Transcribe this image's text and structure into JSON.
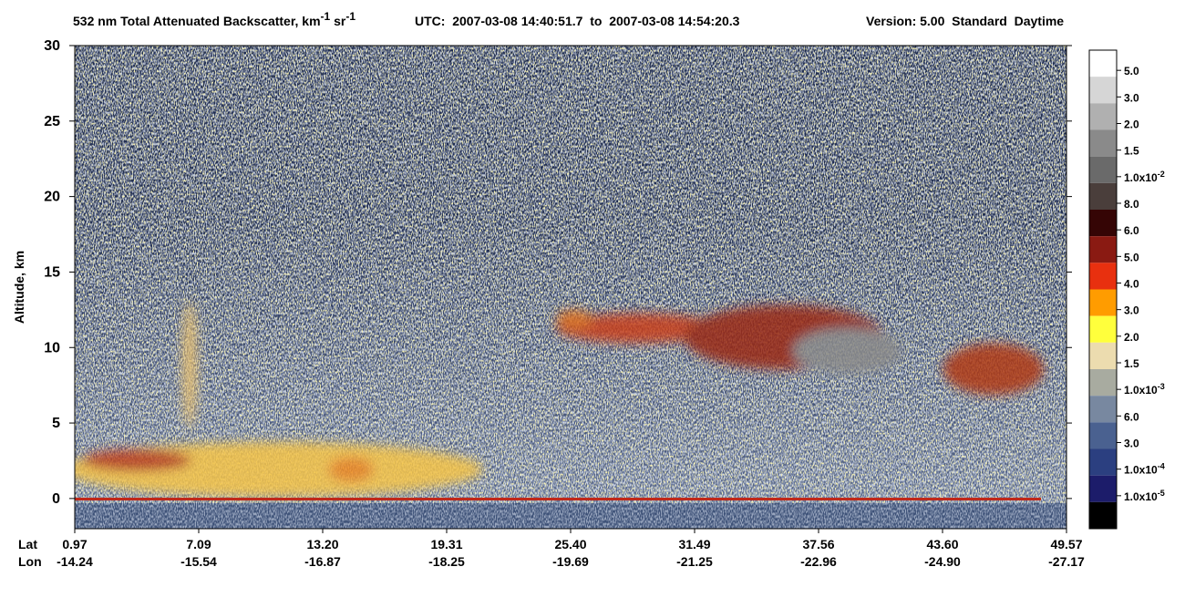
{
  "chart_data": {
    "type": "curtain",
    "title": {
      "main": "532 nm Total Attenuated Backscatter, km",
      "sup1": "-1",
      "mid": " sr",
      "sup2": "-1"
    },
    "utc": "UTC:  2007-03-08 14:40:51.7  to  2007-03-08 14:54:20.3",
    "version": "Version: 5.00  Standard  Daytime",
    "ylabel": "Altitude, km",
    "ylim": [
      -2,
      30
    ],
    "yticks": [
      0,
      5,
      10,
      15,
      20,
      25,
      30
    ],
    "xtick_rows": [
      {
        "name": "Lat",
        "labels": [
          0.97,
          7.09,
          {
            "value": 13.2,
            "label": "13.20"
          },
          19.31,
          {
            "value": 25.4,
            "label": "25.40"
          },
          31.49,
          37.56,
          {
            "value": 43.6,
            "label": "43.60"
          },
          49.57
        ]
      },
      {
        "name": "Lon",
        "labels": [
          -14.24,
          -15.54,
          -16.87,
          -18.25,
          -19.69,
          -21.25,
          -22.96,
          {
            "value": -24.9,
            "label": "-24.90"
          },
          -27.17
        ]
      }
    ],
    "colorbar": {
      "colors": [
        "#ffffff",
        "#d6d6d6",
        "#b0b0b0",
        "#8a8a8a",
        "#6a6a6a",
        "#4a3e3b",
        "#350505",
        "#8a1a12",
        "#e8300f",
        "#ff9c00",
        "#ffff3c",
        "#ecdcaf",
        "#a8aba0",
        "#7888a0",
        "#4a6190",
        "#2b3f80",
        "#1c1c6a",
        "#000000"
      ],
      "labels": [
        {
          "text": "5.0"
        },
        {
          "text": "3.0"
        },
        {
          "text": "2.0"
        },
        {
          "text": "1.5"
        },
        {
          "text": "1.0x10",
          "sup": "-2"
        },
        {
          "text": "8.0"
        },
        {
          "text": "6.0"
        },
        {
          "text": "5.0"
        },
        {
          "text": "4.0"
        },
        {
          "text": "3.0"
        },
        {
          "text": "2.0"
        },
        {
          "text": "1.5"
        },
        {
          "text": "1.0x10",
          "sup": "-3"
        },
        {
          "text": "6.0"
        },
        {
          "text": "3.0"
        },
        {
          "text": "1.0x10",
          "sup": "-4"
        },
        {
          "text": "1.0x10",
          "sup": "-5"
        }
      ]
    }
  }
}
